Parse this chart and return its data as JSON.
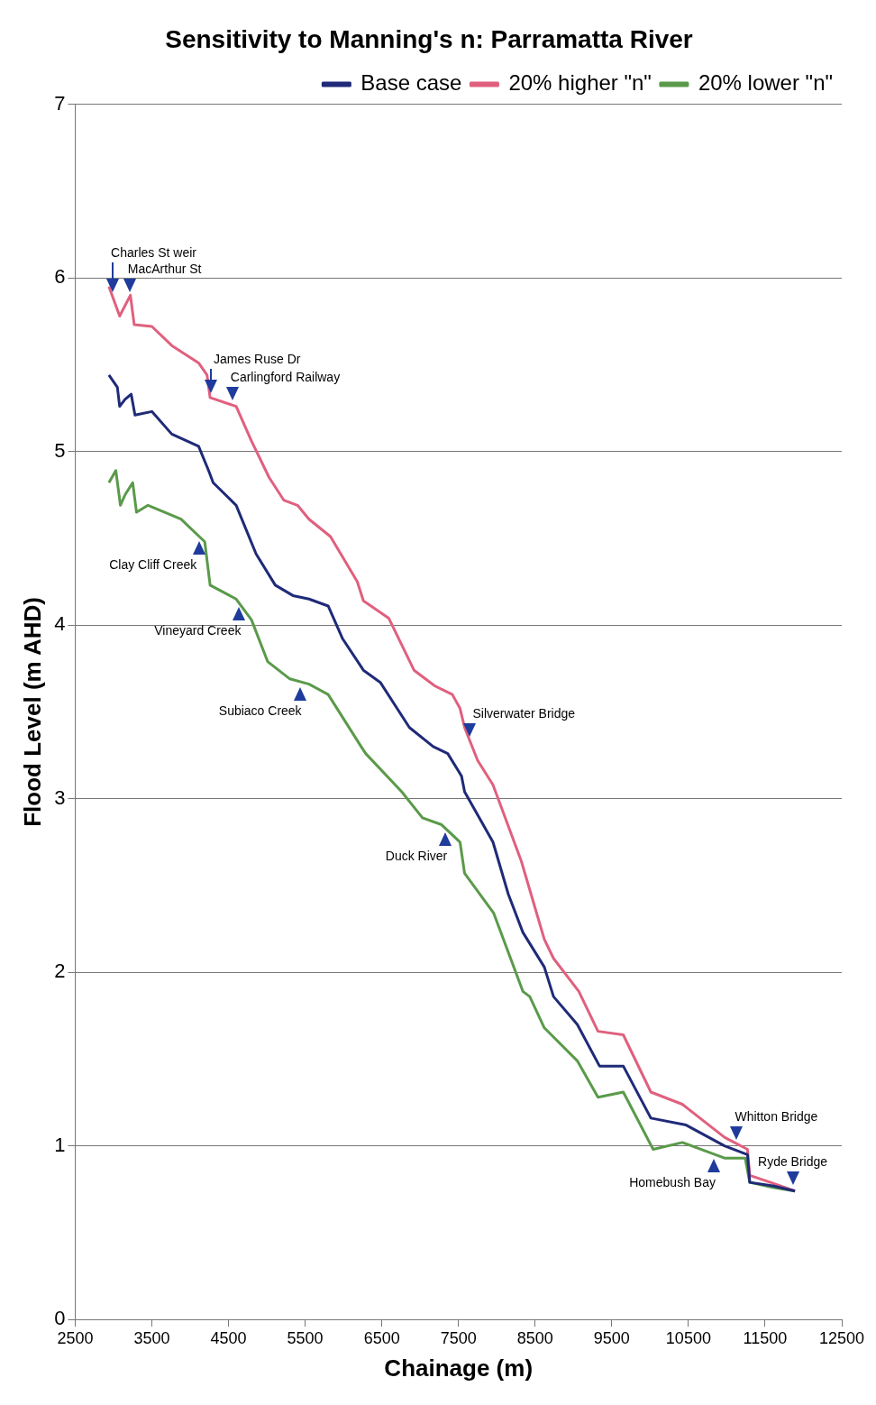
{
  "chart_data": {
    "type": "line",
    "title": "Sensitivity to Manning's n: Parramatta River",
    "xlabel": "Chainage (m)",
    "ylabel": "Flood Level (m AHD)",
    "xlim": [
      2500,
      12500
    ],
    "xticks": [
      2500,
      3500,
      4500,
      5500,
      6500,
      7500,
      8500,
      9500,
      10500,
      11500,
      12500
    ],
    "ylim": [
      0,
      7
    ],
    "yticks": [
      0,
      1,
      2,
      3,
      4,
      5,
      6,
      7
    ],
    "grid": "y",
    "legend": "top right",
    "marker": "none",
    "line_style": "solid",
    "series": [
      {
        "name": "Base case",
        "color": "#1f2a78",
        "x": [
          2940,
          3050,
          3080,
          3150,
          3230,
          3280,
          3500,
          3760,
          4110,
          4240,
          4300,
          4600,
          4860,
          5110,
          5340,
          5550,
          5800,
          5990,
          6260,
          6480,
          6860,
          7170,
          7360,
          7540,
          7580,
          7950,
          8150,
          8340,
          8620,
          8740,
          9050,
          9340,
          9650,
          10010,
          10470,
          10970,
          11270,
          11300,
          11600,
          11890
        ],
        "values": [
          5.44,
          5.37,
          5.26,
          5.3,
          5.33,
          5.21,
          5.23,
          5.1,
          5.03,
          4.89,
          4.82,
          4.69,
          4.41,
          4.23,
          4.17,
          4.15,
          4.11,
          3.92,
          3.74,
          3.67,
          3.41,
          3.3,
          3.26,
          3.13,
          3.04,
          2.75,
          2.45,
          2.23,
          2.03,
          1.86,
          1.7,
          1.46,
          1.46,
          1.16,
          1.12,
          1.0,
          0.95,
          0.79,
          0.77,
          0.74
        ]
      },
      {
        "name": "20% higher \"n\"",
        "color": "#e0607e",
        "x": [
          2940,
          3080,
          3220,
          3270,
          3500,
          3760,
          4110,
          4220,
          4260,
          4600,
          4800,
          5030,
          5220,
          5400,
          5550,
          5830,
          6180,
          6260,
          6590,
          6920,
          7190,
          7420,
          7520,
          7580,
          7750,
          7950,
          8320,
          8620,
          8740,
          9070,
          9320,
          9650,
          10010,
          10420,
          10970,
          11270,
          11300,
          11570,
          11890
        ],
        "values": [
          5.95,
          5.78,
          5.9,
          5.73,
          5.72,
          5.61,
          5.51,
          5.44,
          5.31,
          5.26,
          5.06,
          4.85,
          4.72,
          4.69,
          4.61,
          4.51,
          4.25,
          4.14,
          4.04,
          3.74,
          3.65,
          3.6,
          3.52,
          3.41,
          3.22,
          3.08,
          2.64,
          2.19,
          2.08,
          1.89,
          1.66,
          1.64,
          1.31,
          1.24,
          1.05,
          0.98,
          0.83,
          0.79,
          0.74
        ]
      },
      {
        "name": "20% lower \"n\"",
        "color": "#5a9a4a",
        "x": [
          2940,
          3030,
          3090,
          3150,
          3250,
          3300,
          3450,
          3880,
          4190,
          4260,
          4600,
          4800,
          5010,
          5300,
          5550,
          5800,
          6230,
          6290,
          6760,
          7030,
          7280,
          7520,
          7580,
          7960,
          8340,
          8430,
          8620,
          9050,
          9320,
          9650,
          10040,
          10420,
          10970,
          11240,
          11300,
          11600,
          11890
        ],
        "values": [
          4.82,
          4.89,
          4.69,
          4.75,
          4.82,
          4.65,
          4.69,
          4.61,
          4.48,
          4.23,
          4.15,
          4.03,
          3.79,
          3.69,
          3.66,
          3.6,
          3.3,
          3.26,
          3.04,
          2.89,
          2.85,
          2.75,
          2.57,
          2.34,
          1.89,
          1.86,
          1.68,
          1.49,
          1.28,
          1.31,
          0.98,
          1.02,
          0.93,
          0.93,
          0.79,
          0.76,
          0.74
        ]
      }
    ],
    "annotations": [
      {
        "text": "Charles St weir",
        "x": 2990,
        "y": 5.89
      },
      {
        "text": "MacArthur St",
        "x": 3210,
        "y": 5.89
      },
      {
        "text": "James Ruse Dr",
        "x": 4270,
        "y": 5.31
      },
      {
        "text": "Carlingford Railway",
        "x": 4550,
        "y": 5.27
      },
      {
        "text": "Clay Cliff Creek",
        "x": 4120,
        "y": 4.51
      },
      {
        "text": "Vineyard Creek",
        "x": 4640,
        "y": 4.13
      },
      {
        "text": "Subiaco Creek",
        "x": 5430,
        "y": 3.67
      },
      {
        "text": "Silverwater Bridge",
        "x": 7650,
        "y": 3.33
      },
      {
        "text": "Duck River",
        "x": 7330,
        "y": 2.83
      },
      {
        "text": "Whitton Bridge",
        "x": 11130,
        "y": 1.01
      },
      {
        "text": "Homebush Bay",
        "x": 10830,
        "y": 0.95
      },
      {
        "text": "Ryde Bridge",
        "x": 11860,
        "y": 0.75
      }
    ]
  }
}
